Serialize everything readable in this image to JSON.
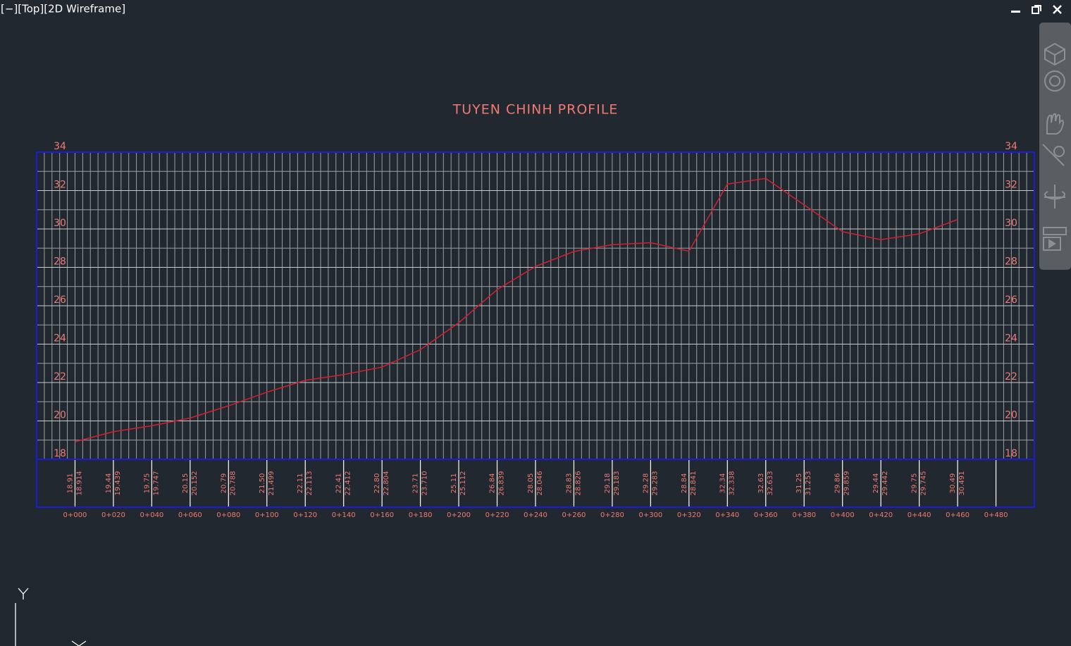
{
  "viewport": {
    "label": "[−][Top][2D Wireframe]"
  },
  "chart_data": {
    "type": "line",
    "title": "TUYEN CHINH PROFILE",
    "xlim": [
      -20,
      500
    ],
    "ylim": [
      18,
      34
    ],
    "yticks": [
      18,
      20,
      22,
      24,
      26,
      28,
      30,
      32,
      34
    ],
    "xticks": [
      {
        "value": 0,
        "label": "0+000"
      },
      {
        "value": 20,
        "label": "0+020"
      },
      {
        "value": 40,
        "label": "0+040"
      },
      {
        "value": 60,
        "label": "0+060"
      },
      {
        "value": 80,
        "label": "0+080"
      },
      {
        "value": 100,
        "label": "0+100"
      },
      {
        "value": 120,
        "label": "0+120"
      },
      {
        "value": 140,
        "label": "0+140"
      },
      {
        "value": 160,
        "label": "0+160"
      },
      {
        "value": 180,
        "label": "0+180"
      },
      {
        "value": 200,
        "label": "0+200"
      },
      {
        "value": 220,
        "label": "0+220"
      },
      {
        "value": 240,
        "label": "0+240"
      },
      {
        "value": 260,
        "label": "0+260"
      },
      {
        "value": 280,
        "label": "0+280"
      },
      {
        "value": 300,
        "label": "0+300"
      },
      {
        "value": 320,
        "label": "0+320"
      },
      {
        "value": 340,
        "label": "0+340"
      },
      {
        "value": 360,
        "label": "0+360"
      },
      {
        "value": 380,
        "label": "0+380"
      },
      {
        "value": 400,
        "label": "0+400"
      },
      {
        "value": 420,
        "label": "0+420"
      },
      {
        "value": 440,
        "label": "0+440"
      },
      {
        "value": 460,
        "label": "0+460"
      },
      {
        "value": 480,
        "label": "0+480"
      }
    ],
    "series": [
      {
        "color": "#d42030",
        "x": [
          0,
          20,
          40,
          60,
          80,
          100,
          120,
          140,
          160,
          180,
          200,
          220,
          240,
          260,
          280,
          300,
          320,
          340,
          360,
          380,
          400,
          420,
          440,
          460
        ],
        "values": [
          18.914,
          19.439,
          19.747,
          20.152,
          20.788,
          21.499,
          22.113,
          22.412,
          22.804,
          23.71,
          25.112,
          26.839,
          28.046,
          28.826,
          29.183,
          29.283,
          28.841,
          32.338,
          32.633,
          31.253,
          29.859,
          29.442,
          29.745,
          30.491
        ],
        "value_labels": [
          "18.91",
          "19.44",
          "19.75",
          "20.15",
          "20.79",
          "21.50",
          "22.11",
          "22.41",
          "22.80",
          "23.71",
          "25.11",
          "26.84",
          "28.05",
          "28.83",
          "29.18",
          "29.28",
          "28.84",
          "32.34",
          "32.63",
          "31.25",
          "29.86",
          "29.44",
          "29.75",
          "30.49"
        ],
        "elevation_labels": [
          "18.914",
          "19.439",
          "19.747",
          "20.152",
          "20.788",
          "21.499",
          "22.113",
          "22.412",
          "22.804",
          "23.710",
          "25.112",
          "26.839",
          "28.046",
          "28.826",
          "29.183",
          "29.283",
          "28.841",
          "32.338",
          "32.633",
          "31.253",
          "29.859",
          "29.442",
          "29.745",
          "30.491"
        ]
      }
    ],
    "grid": true,
    "frame_color": "#1c1cd4",
    "label_color": "#f07a72"
  }
}
